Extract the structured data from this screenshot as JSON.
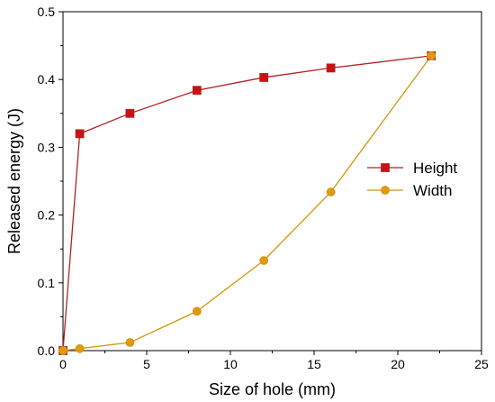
{
  "chart_data": {
    "type": "line",
    "xlabel": "Size of hole (mm)",
    "ylabel": "Released energy (J)",
    "xlim": [
      0,
      25
    ],
    "ylim": [
      0,
      0.5
    ],
    "xticks": [
      0,
      5,
      10,
      15,
      20,
      25
    ],
    "yticks": [
      0.0,
      0.1,
      0.2,
      0.3,
      0.4,
      0.5
    ],
    "ytick_labels": [
      "0.0",
      "0.1",
      "0.2",
      "0.3",
      "0.4",
      "0.5"
    ],
    "grid": false,
    "legend_position": "right",
    "series": [
      {
        "name": "Height",
        "marker": "square",
        "color": "#b22222",
        "marker_color": "#cc1111",
        "x": [
          0,
          1,
          4,
          8,
          12,
          16,
          22
        ],
        "y": [
          0.0,
          0.32,
          0.35,
          0.384,
          0.403,
          0.417,
          0.435
        ]
      },
      {
        "name": "Width",
        "marker": "circle",
        "color": "#d4960e",
        "marker_color": "#e09a10",
        "x": [
          0,
          1,
          4,
          8,
          12,
          16,
          22
        ],
        "y": [
          0.0,
          0.003,
          0.012,
          0.058,
          0.133,
          0.234,
          0.435
        ]
      }
    ]
  }
}
